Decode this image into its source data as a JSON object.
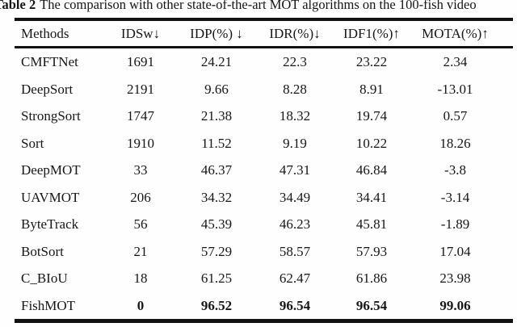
{
  "caption": {
    "label": "Table 2",
    "text": "The comparison with other state-of-the-art MOT algorithms on the 100-fish video"
  },
  "table": {
    "columns": [
      "Methods",
      "IDSw↓",
      "IDP(%) ↓",
      "IDR(%)↓",
      "IDF1(%)↑",
      "MOTA(%)↑"
    ],
    "rows": [
      {
        "method": "CMFTNet",
        "values": [
          "1691",
          "24.21",
          "22.3",
          "23.22",
          "2.34"
        ]
      },
      {
        "method": "DeepSort",
        "values": [
          "2191",
          "9.66",
          "8.28",
          "8.91",
          "-13.01"
        ]
      },
      {
        "method": "StrongSort",
        "values": [
          "1747",
          "21.38",
          "18.32",
          "19.74",
          "0.57"
        ]
      },
      {
        "method": "Sort",
        "values": [
          "1910",
          "11.52",
          "9.19",
          "10.22",
          "18.26"
        ]
      },
      {
        "method": "DeepMOT",
        "values": [
          "33",
          "46.37",
          "47.31",
          "46.84",
          "-3.8"
        ]
      },
      {
        "method": "UAVMOT",
        "values": [
          "206",
          "34.32",
          "34.49",
          "34.41",
          "-3.14"
        ]
      },
      {
        "method": "ByteTrack",
        "values": [
          "56",
          "45.39",
          "46.23",
          "45.81",
          "-1.89"
        ]
      },
      {
        "method": "BotSort",
        "values": [
          "21",
          "57.29",
          "58.57",
          "57.93",
          "17.04"
        ]
      },
      {
        "method": "C_BIoU",
        "values": [
          "18",
          "61.25",
          "62.47",
          "61.86",
          "23.98"
        ]
      },
      {
        "method": "FishMOT",
        "values": [
          "0",
          "96.52",
          "96.54",
          "96.54",
          "99.06"
        ]
      }
    ]
  },
  "colors": {
    "text": "#161616",
    "rule": "#121212",
    "background": "#fefefe"
  }
}
